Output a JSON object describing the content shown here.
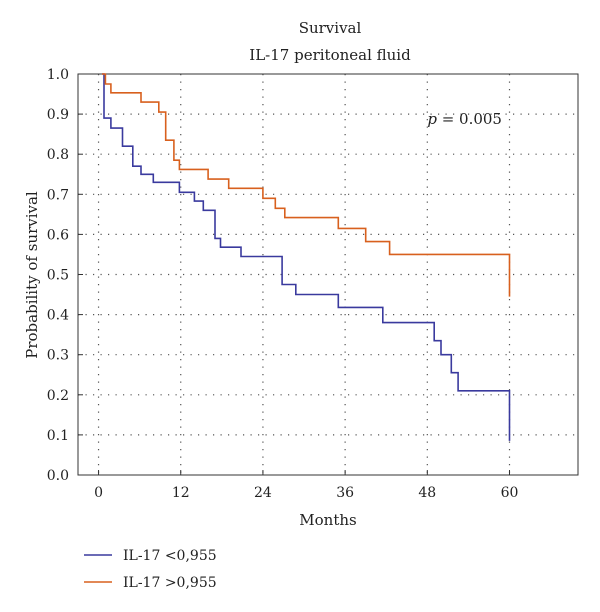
{
  "chart_data": {
    "type": "line",
    "title": "Survival",
    "subtitle": "IL-17 peritoneal fluid",
    "xlabel": "Months",
    "ylabel": "Probability of survival",
    "xlim": [
      -3,
      70
    ],
    "ylim": [
      0,
      1
    ],
    "xticks": [
      0,
      12,
      24,
      36,
      48,
      60
    ],
    "yticks": [
      0.0,
      0.1,
      0.2,
      0.3,
      0.4,
      0.5,
      0.6,
      0.7,
      0.8,
      0.9,
      1.0
    ],
    "xtick_labels": [
      "0",
      "12",
      "24",
      "36",
      "48",
      "60"
    ],
    "ytick_labels": [
      "0.0",
      "0.1",
      "0.2",
      "0.3",
      "0.4",
      "0.5",
      "0.6",
      "0.7",
      "0.8",
      "0.9",
      "1.0"
    ],
    "grid": true,
    "legend_position": "bottom-left",
    "annotation": {
      "italic": "p",
      "rest": " = 0.005",
      "x": 48,
      "y": 0.85
    },
    "series": [
      {
        "name": "IL-17 <0,955",
        "color": "#3a3a9e",
        "steps": [
          [
            0.5,
            1.0
          ],
          [
            0.8,
            0.89
          ],
          [
            1.8,
            0.865
          ],
          [
            3.5,
            0.82
          ],
          [
            5.0,
            0.77
          ],
          [
            6.2,
            0.75
          ],
          [
            8.0,
            0.73
          ],
          [
            11.8,
            0.705
          ],
          [
            14.0,
            0.683
          ],
          [
            15.3,
            0.66
          ],
          [
            17.0,
            0.59
          ],
          [
            17.8,
            0.568
          ],
          [
            20.8,
            0.545
          ],
          [
            26.8,
            0.475
          ],
          [
            28.8,
            0.45
          ],
          [
            35.0,
            0.418
          ],
          [
            41.5,
            0.38
          ],
          [
            49.0,
            0.335
          ],
          [
            50.0,
            0.3
          ],
          [
            51.5,
            0.255
          ],
          [
            52.5,
            0.21
          ],
          [
            60.0,
            0.085
          ]
        ],
        "end_x": 60.0
      },
      {
        "name": "IL-17 >0,955",
        "color": "#d8601e",
        "steps": [
          [
            0.5,
            1.0
          ],
          [
            1.0,
            0.975
          ],
          [
            1.8,
            0.953
          ],
          [
            6.2,
            0.93
          ],
          [
            8.8,
            0.905
          ],
          [
            9.8,
            0.835
          ],
          [
            11.0,
            0.785
          ],
          [
            11.8,
            0.762
          ],
          [
            16.0,
            0.738
          ],
          [
            19.0,
            0.715
          ],
          [
            24.0,
            0.69
          ],
          [
            25.8,
            0.665
          ],
          [
            27.2,
            0.642
          ],
          [
            35.0,
            0.615
          ],
          [
            39.0,
            0.582
          ],
          [
            42.5,
            0.55
          ],
          [
            60.0,
            0.445
          ]
        ],
        "end_x": 60.0
      }
    ]
  }
}
